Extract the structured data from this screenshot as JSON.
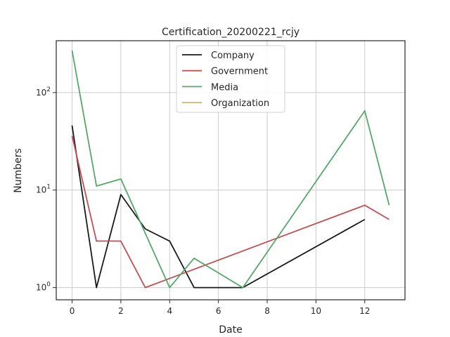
{
  "chart_data": {
    "type": "line",
    "title": "Certification_20200221_rcjy",
    "xlabel": "Date",
    "ylabel": "Numbers",
    "yscale": "log",
    "xlim": [
      -0.65,
      13.65
    ],
    "ylim": [
      0.75,
      340
    ],
    "xticks": [
      0,
      2,
      4,
      6,
      8,
      10,
      12
    ],
    "xtick_labels": [
      "0",
      "2",
      "4",
      "6",
      "8",
      "10",
      "12"
    ],
    "yticks": [
      1,
      10,
      100
    ],
    "ytick_labels": [
      {
        "base": "10",
        "exp": "0"
      },
      {
        "base": "10",
        "exp": "1"
      },
      {
        "base": "10",
        "exp": "2"
      }
    ],
    "grid": true,
    "legend_position": "upper center",
    "series": [
      {
        "name": "Company",
        "color": "#1a1a1a",
        "x": [
          0,
          1,
          2,
          3,
          4,
          5,
          7,
          12
        ],
        "y": [
          46,
          1,
          9,
          4,
          3,
          1,
          1,
          5
        ]
      },
      {
        "name": "Government",
        "color": "#c44e52",
        "x": [
          0,
          1,
          2,
          3,
          12,
          13
        ],
        "y": [
          36,
          3,
          3,
          1,
          7,
          5
        ]
      },
      {
        "name": "Media",
        "color": "#55a868",
        "x": [
          0,
          1,
          2,
          4,
          5,
          7,
          12,
          13
        ],
        "y": [
          270,
          11,
          13,
          1,
          2,
          1,
          65,
          7
        ]
      },
      {
        "name": "Organization",
        "color": "#ccb974",
        "x": [],
        "y": []
      }
    ]
  }
}
